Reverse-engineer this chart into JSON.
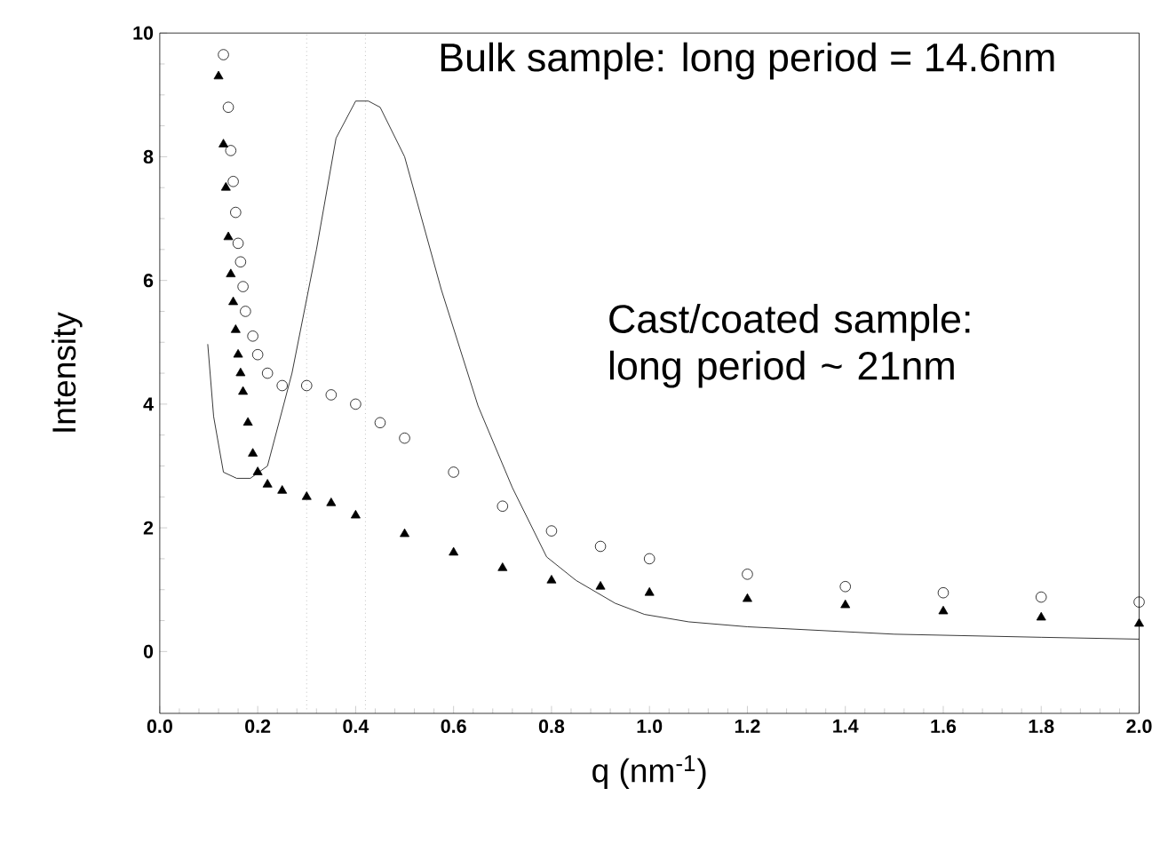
{
  "chart_data": {
    "type": "scatter",
    "xlabel": "q (nm$^{-1}$)",
    "ylabel": "Intensity",
    "xlim": [
      0,
      2
    ],
    "ylim": [
      -1,
      10
    ],
    "xticks": [
      {
        "value": 0,
        "label": "0.0"
      },
      {
        "value": 0.2,
        "label": "0.2"
      },
      {
        "value": 0.4,
        "label": "0.4"
      },
      {
        "value": 0.6,
        "label": "0.6"
      },
      {
        "value": 0.8,
        "label": "0.8"
      },
      {
        "value": 1.0,
        "label": "1.0"
      },
      {
        "value": 1.2,
        "label": "1.2"
      },
      {
        "value": 1.4,
        "label": "1.4"
      },
      {
        "value": 1.6,
        "label": "1.6"
      },
      {
        "value": 1.8,
        "label": "1.8"
      },
      {
        "value": 2.0,
        "label": "2.0"
      }
    ],
    "yticks": [
      0,
      2,
      4,
      6,
      8,
      10
    ],
    "annotations": [
      "Bulk sample: long period = 14.6nm",
      "Cast/coated sample: long period ~ 21nm"
    ],
    "ref_lines": [
      {
        "axis": "x",
        "value": 0.42,
        "color": "#999999",
        "line_style": "dotted"
      },
      {
        "axis": "x",
        "value": 0.3,
        "color": "#999999",
        "line_style": "dotted"
      }
    ],
    "series": [
      {
        "type": "line",
        "marker": "none",
        "color": "#000000",
        "x": [
          0.098,
          0.11,
          0.13,
          0.157,
          0.185,
          0.22,
          0.27,
          0.32,
          0.36,
          0.4,
          0.426,
          0.45,
          0.5,
          0.575,
          0.65,
          0.72,
          0.79,
          0.85,
          0.93,
          0.99,
          1.08,
          1.2,
          1.5,
          1.8,
          2.0
        ],
        "values": [
          4.97,
          3.8,
          2.9,
          2.8,
          2.8,
          3.0,
          4.5,
          6.5,
          8.3,
          8.9,
          8.9,
          8.8,
          8.0,
          5.85,
          3.97,
          2.65,
          1.53,
          1.15,
          0.78,
          0.6,
          0.48,
          0.4,
          0.28,
          0.23,
          0.2
        ]
      },
      {
        "marker": "circle",
        "color": "#000000",
        "x": [
          0.13,
          0.14,
          0.145,
          0.15,
          0.155,
          0.16,
          0.165,
          0.17,
          0.175,
          0.19,
          0.2,
          0.22,
          0.25,
          0.3,
          0.35,
          0.4,
          0.45,
          0.5,
          0.6,
          0.7,
          0.8,
          0.9,
          1.0,
          1.2,
          1.4,
          1.6,
          1.8,
          2.0
        ],
        "values": [
          9.65,
          8.8,
          8.1,
          7.6,
          7.1,
          6.6,
          6.3,
          5.9,
          5.5,
          5.1,
          4.8,
          4.5,
          4.3,
          4.3,
          4.15,
          4.0,
          3.7,
          3.45,
          2.9,
          2.35,
          1.95,
          1.7,
          1.5,
          1.25,
          1.05,
          0.95,
          0.88,
          0.8
        ]
      },
      {
        "marker": "triangle",
        "color": "#000000",
        "x": [
          0.12,
          0.13,
          0.135,
          0.14,
          0.145,
          0.15,
          0.155,
          0.16,
          0.165,
          0.17,
          0.18,
          0.19,
          0.2,
          0.22,
          0.25,
          0.3,
          0.35,
          0.4,
          0.5,
          0.6,
          0.7,
          0.8,
          0.9,
          1.0,
          1.2,
          1.4,
          1.6,
          1.8,
          2.0
        ],
        "values": [
          9.3,
          8.2,
          7.5,
          6.7,
          6.1,
          5.65,
          5.2,
          4.8,
          4.5,
          4.2,
          3.7,
          3.2,
          2.9,
          2.7,
          2.6,
          2.5,
          2.4,
          2.2,
          1.9,
          1.6,
          1.35,
          1.15,
          1.05,
          0.95,
          0.85,
          0.75,
          0.65,
          0.55,
          0.45
        ]
      }
    ]
  }
}
